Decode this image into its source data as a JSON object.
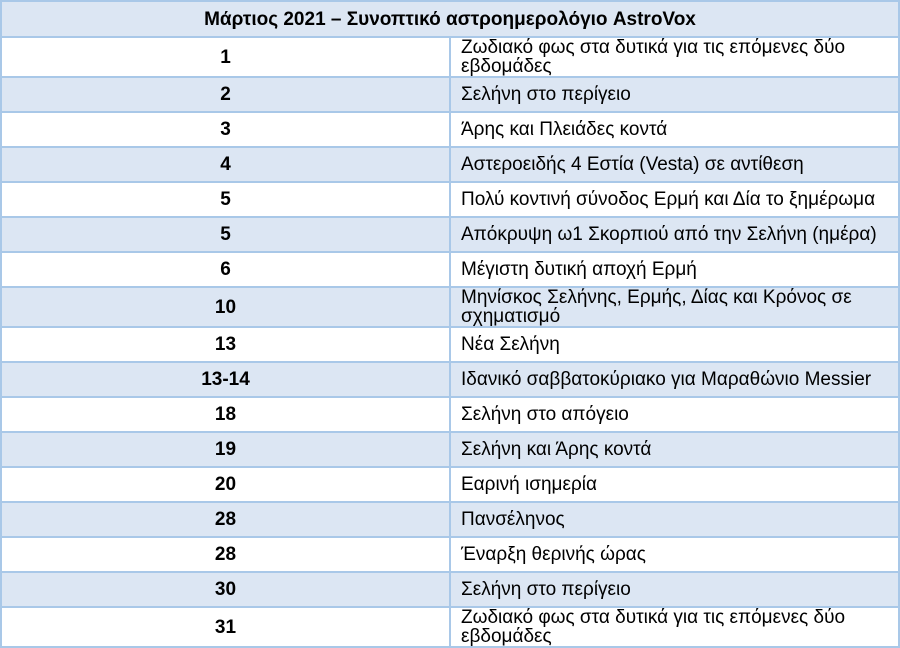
{
  "title": "Μάρτιος 2021 – Συνοπτικό αστροημερολόγιο AstroVox",
  "colors": {
    "stripe": "#dce6f3",
    "border": "#a9c8e8"
  },
  "rows": [
    {
      "day": "1",
      "event": "Ζωδιακό φως στα δυτικά για τις επόμενες δύο εβδομάδες"
    },
    {
      "day": "2",
      "event": "Σελήνη στο περίγειο"
    },
    {
      "day": "3",
      "event": "Άρης και Πλειάδες κοντά"
    },
    {
      "day": "4",
      "event": "Αστεροειδής 4 Εστία (Vesta) σε αντίθεση"
    },
    {
      "day": "5",
      "event": "Πολύ κοντινή σύνοδος Ερμή και Δία το ξημέρωμα"
    },
    {
      "day": "5",
      "event": "Απόκρυψη ω1 Σκορπιού από την Σελήνη (ημέρα)"
    },
    {
      "day": "6",
      "event": "Μέγιστη δυτική αποχή Ερμή"
    },
    {
      "day": "10",
      "event": "Μηνίσκος Σελήνης, Ερμής, Δίας και Κρόνος σε σχηματισμό"
    },
    {
      "day": "13",
      "event": "Νέα Σελήνη"
    },
    {
      "day": "13-14",
      "event": "Ιδανικό σαββατοκύριακο για Μαραθώνιο Messier"
    },
    {
      "day": "18",
      "event": "Σελήνη στο απόγειο"
    },
    {
      "day": "19",
      "event": "Σελήνη και Άρης κοντά"
    },
    {
      "day": "20",
      "event": "Εαρινή ισημερία"
    },
    {
      "day": "28",
      "event": "Πανσέληνος"
    },
    {
      "day": "28",
      "event": "Έναρξη θερινής ώρας"
    },
    {
      "day": "30",
      "event": "Σελήνη στο περίγειο"
    },
    {
      "day": "31",
      "event": "Ζωδιακό φως στα δυτικά για τις επόμενες δύο εβδομάδες"
    }
  ]
}
